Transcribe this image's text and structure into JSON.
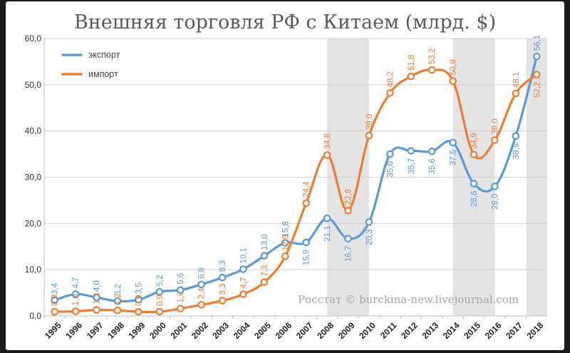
{
  "chart_data": {
    "type": "line",
    "title": "Внешняя торговля РФ с Китаем (млрд. $)",
    "categories": [
      "1995",
      "1996",
      "1997",
      "1998",
      "1999",
      "2000",
      "2001",
      "2002",
      "2003",
      "2004",
      "2005",
      "2006",
      "2007",
      "2008",
      "2009",
      "2010",
      "2011",
      "2012",
      "2013",
      "2014",
      "2015",
      "2016",
      "2017",
      "2018"
    ],
    "series": [
      {
        "name": "экспорт",
        "color": "#5b9bd5",
        "values": [
          3.4,
          4.7,
          4.0,
          3.2,
          3.5,
          5.2,
          5.6,
          6.8,
          8.3,
          10.1,
          13.0,
          15.8,
          15.9,
          21.1,
          16.7,
          20.3,
          35.0,
          35.7,
          35.6,
          37.5,
          28.6,
          28.0,
          38.9,
          56.1
        ],
        "labels": [
          "3,4",
          "4,7",
          "4,0",
          "3,2",
          "3,5",
          "5,2",
          "5,6",
          "6,8",
          "8,3",
          "10,1",
          "13,0",
          "15,8",
          "15,9",
          "21,1",
          "16,7",
          "20,3",
          "35,0",
          "35,7",
          "35,6",
          "37,5",
          "28,6",
          "28,0",
          "38,9",
          "56,1"
        ]
      },
      {
        "name": "импорт",
        "color": "#ed7d31",
        "values": [
          0.9,
          1.0,
          1.3,
          1.2,
          0.9,
          0.9,
          1.6,
          2.4,
          3.3,
          4.7,
          7.3,
          12.9,
          24.4,
          34.8,
          22.8,
          39.0,
          48.2,
          51.8,
          53.2,
          50.8,
          34.9,
          38.0,
          48.1,
          52.2
        ],
        "labels": [
          "0,9",
          "1,0",
          "1,3",
          "1,2",
          "0,9",
          "0,9",
          "1,6",
          "2,4",
          "3,3",
          "4,7",
          "7,3",
          "12,9",
          "24,4",
          "34,8",
          "22,8",
          "39,0",
          "48,2",
          "51,8",
          "53,2",
          "50,8",
          "34,9",
          "38,0",
          "48,1",
          "52,2"
        ]
      }
    ],
    "ylim": [
      0,
      60
    ],
    "yticks": [
      "0,0",
      "10,0",
      "20,0",
      "30,0",
      "40,0",
      "50,0",
      "60,0"
    ],
    "shaded_ranges": [
      [
        "2008",
        "2010"
      ],
      [
        "2014",
        "2016"
      ],
      [
        "2018",
        "2018"
      ]
    ],
    "legend_position": "top-left",
    "grid": true
  },
  "watermark": "Росстат © burckina-new.livejournal.com"
}
